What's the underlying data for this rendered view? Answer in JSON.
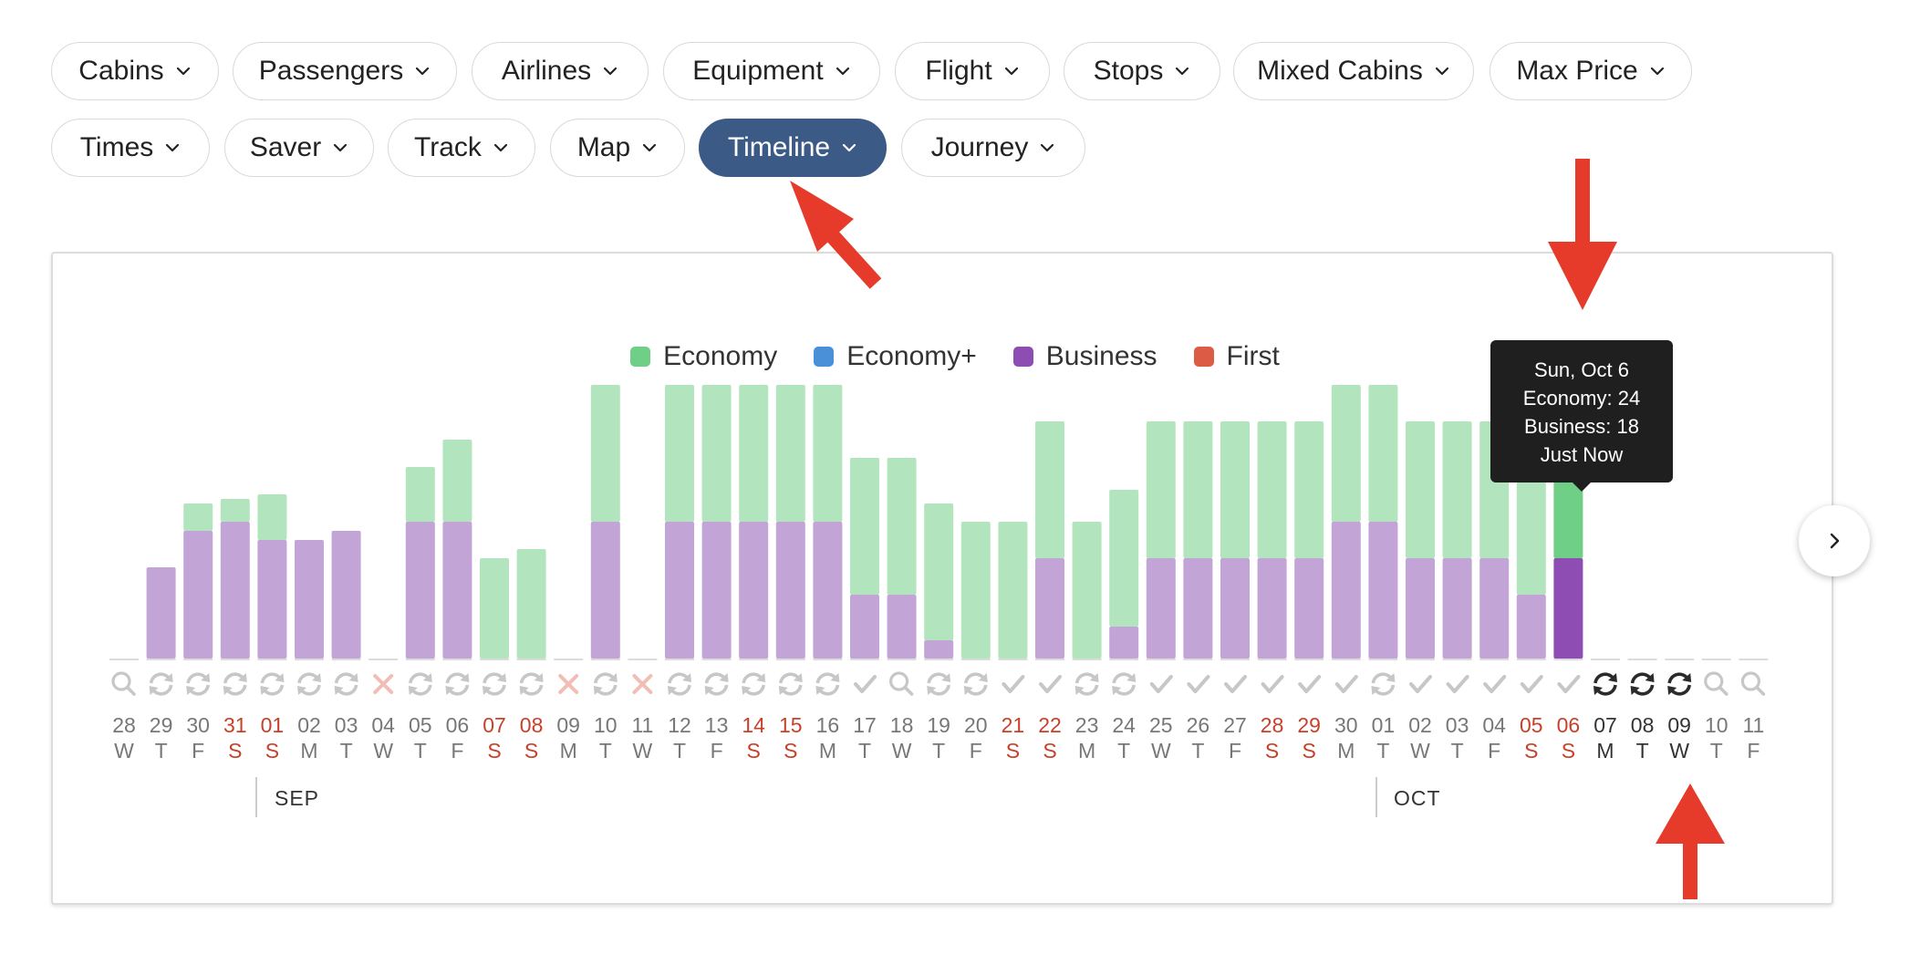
{
  "filters_row1": [
    {
      "label": "Cabins",
      "active": false
    },
    {
      "label": "Passengers",
      "active": false
    },
    {
      "label": "Airlines",
      "active": false
    },
    {
      "label": "Equipment",
      "active": false
    },
    {
      "label": "Flight",
      "active": false
    },
    {
      "label": "Stops",
      "active": false
    },
    {
      "label": "Mixed Cabins",
      "active": false
    },
    {
      "label": "Max Price",
      "active": false
    }
  ],
  "filters_row2": [
    {
      "label": "Times",
      "active": false
    },
    {
      "label": "Saver",
      "active": false
    },
    {
      "label": "Track",
      "active": false
    },
    {
      "label": "Map",
      "active": false
    },
    {
      "label": "Timeline",
      "active": true
    },
    {
      "label": "Journey",
      "active": false
    }
  ],
  "colors": {
    "economy": "#6fcf86",
    "economy_light": "#b2e5bd",
    "economy_plus": "#4a90d9",
    "business": "#8e4db3",
    "business_light": "#c2a4d6",
    "first": "#db5b44",
    "weekend": "#c8402a",
    "active_pill": "#3c5a86",
    "annotation": "#e63b2a"
  },
  "legend": [
    {
      "label": "Economy",
      "color": "#6fcf86"
    },
    {
      "label": "Economy+",
      "color": "#4a90d9"
    },
    {
      "label": "Business",
      "color": "#8e4db3"
    },
    {
      "label": "First",
      "color": "#db5b44"
    }
  ],
  "tooltip": {
    "date": "Sun, Oct 6",
    "economy": "Economy: 24",
    "business": "Business: 18",
    "updated": "Just Now"
  },
  "months": [
    "SEP",
    "OCT"
  ],
  "chart_data": {
    "type": "bar",
    "stacked": true,
    "series_names": [
      "Economy",
      "Business"
    ],
    "highlighted_day": "06",
    "days": [
      {
        "day": "28",
        "dow": "W",
        "weekend": false,
        "economy": 0,
        "business": 0,
        "status": "search"
      },
      {
        "day": "29",
        "dow": "T",
        "weekend": false,
        "economy": 0,
        "business": 10,
        "status": "refresh"
      },
      {
        "day": "30",
        "dow": "F",
        "weekend": false,
        "economy": 3,
        "business": 14,
        "status": "refresh"
      },
      {
        "day": "31",
        "dow": "S",
        "weekend": true,
        "economy": 2.5,
        "business": 15,
        "status": "refresh"
      },
      {
        "day": "01",
        "dow": "S",
        "weekend": true,
        "economy": 5,
        "business": 13,
        "status": "refresh"
      },
      {
        "day": "02",
        "dow": "M",
        "weekend": false,
        "economy": 0,
        "business": 13,
        "status": "refresh"
      },
      {
        "day": "03",
        "dow": "T",
        "weekend": false,
        "economy": 0,
        "business": 14,
        "status": "refresh"
      },
      {
        "day": "04",
        "dow": "W",
        "weekend": false,
        "economy": 0,
        "business": 0,
        "status": "error"
      },
      {
        "day": "05",
        "dow": "T",
        "weekend": false,
        "economy": 6,
        "business": 15,
        "status": "refresh"
      },
      {
        "day": "06",
        "dow": "F",
        "weekend": false,
        "economy": 9,
        "business": 15,
        "status": "refresh"
      },
      {
        "day": "07",
        "dow": "S",
        "weekend": true,
        "economy": 11,
        "business": 0,
        "status": "refresh"
      },
      {
        "day": "08",
        "dow": "S",
        "weekend": true,
        "economy": 12,
        "business": 0,
        "status": "refresh"
      },
      {
        "day": "09",
        "dow": "M",
        "weekend": false,
        "economy": 0,
        "business": 0,
        "status": "error"
      },
      {
        "day": "10",
        "dow": "T",
        "weekend": false,
        "economy": 15,
        "business": 15,
        "status": "refresh"
      },
      {
        "day": "11",
        "dow": "W",
        "weekend": false,
        "economy": 0,
        "business": 0,
        "status": "error"
      },
      {
        "day": "12",
        "dow": "T",
        "weekend": false,
        "economy": 15,
        "business": 15,
        "status": "refresh"
      },
      {
        "day": "13",
        "dow": "F",
        "weekend": false,
        "economy": 15,
        "business": 15,
        "status": "refresh"
      },
      {
        "day": "14",
        "dow": "S",
        "weekend": true,
        "economy": 15,
        "business": 15,
        "status": "refresh"
      },
      {
        "day": "15",
        "dow": "S",
        "weekend": true,
        "economy": 15,
        "business": 15,
        "status": "refresh"
      },
      {
        "day": "16",
        "dow": "M",
        "weekend": false,
        "economy": 15,
        "business": 15,
        "status": "refresh"
      },
      {
        "day": "17",
        "dow": "T",
        "weekend": false,
        "economy": 15,
        "business": 7,
        "status": "check"
      },
      {
        "day": "18",
        "dow": "W",
        "weekend": false,
        "economy": 15,
        "business": 7,
        "status": "search"
      },
      {
        "day": "19",
        "dow": "T",
        "weekend": false,
        "economy": 15,
        "business": 2,
        "status": "refresh"
      },
      {
        "day": "20",
        "dow": "F",
        "weekend": false,
        "economy": 15,
        "business": 0,
        "status": "refresh"
      },
      {
        "day": "21",
        "dow": "S",
        "weekend": true,
        "economy": 15,
        "business": 0,
        "status": "check"
      },
      {
        "day": "22",
        "dow": "S",
        "weekend": true,
        "economy": 15,
        "business": 11,
        "status": "check"
      },
      {
        "day": "23",
        "dow": "M",
        "weekend": false,
        "economy": 15,
        "business": 0,
        "status": "refresh"
      },
      {
        "day": "24",
        "dow": "T",
        "weekend": false,
        "economy": 15,
        "business": 3.5,
        "status": "refresh"
      },
      {
        "day": "25",
        "dow": "W",
        "weekend": false,
        "economy": 15,
        "business": 11,
        "status": "check"
      },
      {
        "day": "26",
        "dow": "T",
        "weekend": false,
        "economy": 15,
        "business": 11,
        "status": "check"
      },
      {
        "day": "27",
        "dow": "F",
        "weekend": false,
        "economy": 15,
        "business": 11,
        "status": "check"
      },
      {
        "day": "28",
        "dow": "S",
        "weekend": true,
        "economy": 15,
        "business": 11,
        "status": "check"
      },
      {
        "day": "29",
        "dow": "S",
        "weekend": true,
        "economy": 15,
        "business": 11,
        "status": "check"
      },
      {
        "day": "30",
        "dow": "M",
        "weekend": false,
        "economy": 15,
        "business": 15,
        "status": "check"
      },
      {
        "day": "01",
        "dow": "T",
        "weekend": false,
        "economy": 15,
        "business": 15,
        "status": "refresh"
      },
      {
        "day": "02",
        "dow": "W",
        "weekend": false,
        "economy": 15,
        "business": 11,
        "status": "check"
      },
      {
        "day": "03",
        "dow": "T",
        "weekend": false,
        "economy": 15,
        "business": 11,
        "status": "check"
      },
      {
        "day": "04",
        "dow": "F",
        "weekend": false,
        "economy": 15,
        "business": 11,
        "status": "check"
      },
      {
        "day": "05",
        "dow": "S",
        "weekend": true,
        "economy": 15,
        "business": 7,
        "status": "check"
      },
      {
        "day": "06",
        "dow": "S",
        "weekend": true,
        "economy": 15,
        "business": 11,
        "status": "check"
      },
      {
        "day": "07",
        "dow": "M",
        "weekend": false,
        "economy": 0,
        "business": 0,
        "status": "sync"
      },
      {
        "day": "08",
        "dow": "T",
        "weekend": false,
        "economy": 0,
        "business": 0,
        "status": "sync"
      },
      {
        "day": "09",
        "dow": "W",
        "weekend": false,
        "economy": 0,
        "business": 0,
        "status": "sync"
      },
      {
        "day": "10",
        "dow": "T",
        "weekend": false,
        "economy": 0,
        "business": 0,
        "status": "search"
      },
      {
        "day": "11",
        "dow": "F",
        "weekend": false,
        "economy": 0,
        "business": 0,
        "status": "search"
      }
    ]
  }
}
